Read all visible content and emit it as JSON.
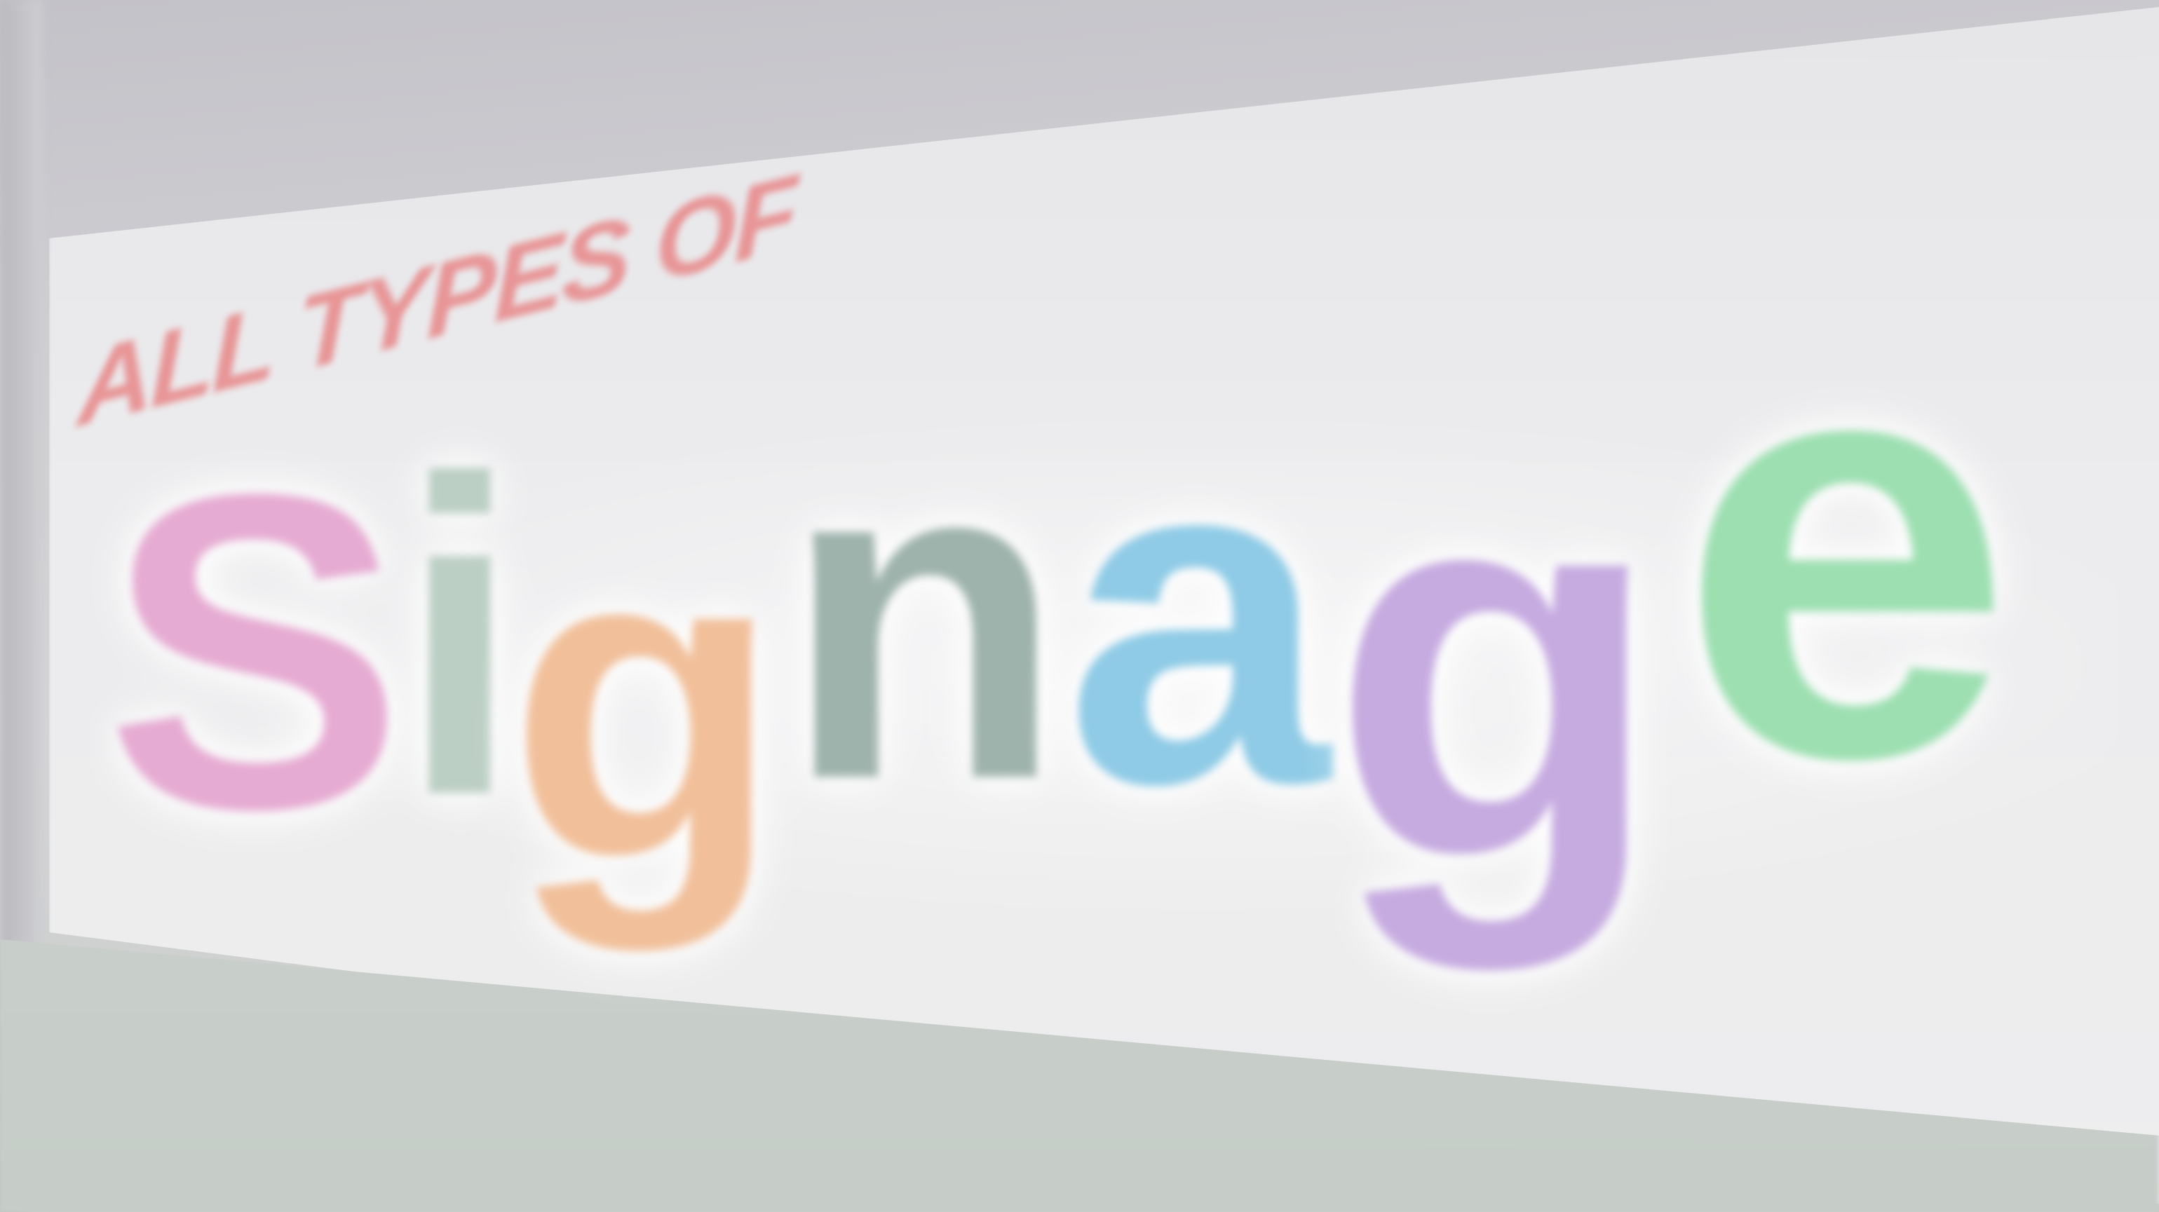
{
  "sign": {
    "tagline": "ALL TYPES OF",
    "letters": [
      "S",
      "i",
      "g",
      "n",
      "a",
      "g",
      "e"
    ]
  },
  "colors": {
    "tagline": "#e89596",
    "S": "#e6abd2",
    "i": "#bccfc4",
    "g1": "#f1c09b",
    "n": "#9fb3ad",
    "a": "#8fcbe6",
    "g2": "#c6abe0",
    "e": "#9ddfb1",
    "panel": "#ececee"
  }
}
